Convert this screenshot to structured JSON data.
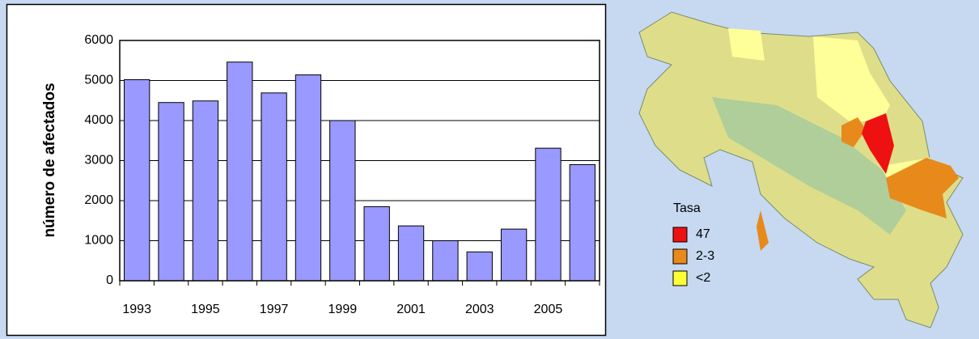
{
  "chart_data": {
    "type": "bar",
    "y_label": "número de afectados",
    "categories": [
      "1993",
      null,
      "1995",
      null,
      "1997",
      null,
      "1999",
      null,
      "2001",
      null,
      "2003",
      null,
      "2005",
      null
    ],
    "values": [
      5020,
      4450,
      4490,
      5460,
      4690,
      5140,
      4000,
      1850,
      1370,
      1000,
      720,
      1290,
      3310,
      2900
    ],
    "color": "#9999ff",
    "ylim": [
      0,
      6000
    ],
    "yticks": [
      0,
      1000,
      2000,
      3000,
      4000,
      5000,
      6000
    ],
    "grid": true
  },
  "map_legend": {
    "title": "Tasa",
    "items": [
      {
        "label": "47",
        "color": "#ee1111"
      },
      {
        "label": "2-3",
        "color": "#e8891c"
      },
      {
        "label": "<2",
        "color": "#ffff33"
      }
    ]
  }
}
